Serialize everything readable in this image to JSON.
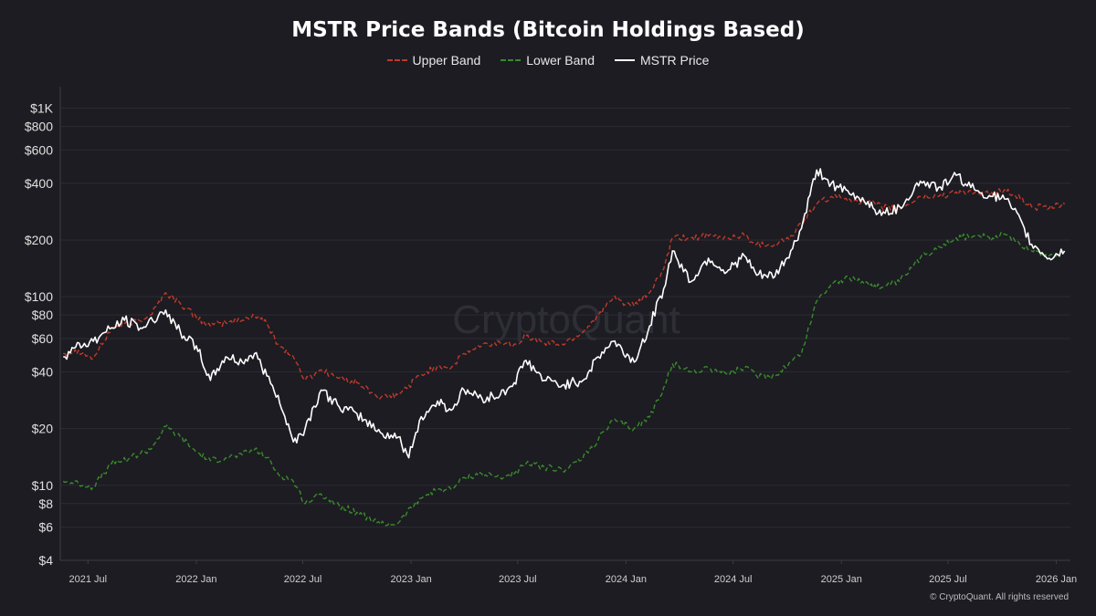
{
  "chart_data": {
    "type": "line",
    "title": "MSTR Price Bands (Bitcoin Holdings Based)",
    "xlabel": "",
    "ylabel": "",
    "y_scale": "log",
    "ylim": [
      4,
      1300
    ],
    "xlim": [
      "2021-05-15",
      "2026-01-25"
    ],
    "grid": true,
    "legend_position": "top-center",
    "x_tick_labels": [
      "2021 Jul",
      "2022 Jan",
      "2022 Jul",
      "2023 Jan",
      "2023 Jul",
      "2024 Jan",
      "2024 Jul",
      "2025 Jan",
      "2025 Jul",
      "2026 Jan"
    ],
    "x_tick_dates": [
      "2021-07-01",
      "2022-01-01",
      "2022-07-01",
      "2023-01-01",
      "2023-07-01",
      "2024-01-01",
      "2024-07-01",
      "2025-01-01",
      "2025-07-01",
      "2026-01-01"
    ],
    "y_tick_labels": [
      "$4",
      "$6",
      "$8",
      "$10",
      "$20",
      "$40",
      "$60",
      "$80",
      "$100",
      "$200",
      "$400",
      "$600",
      "$800",
      "$1K"
    ],
    "y_tick_values": [
      4,
      6,
      8,
      10,
      20,
      40,
      60,
      80,
      100,
      200,
      400,
      600,
      800,
      1000
    ],
    "series": [
      {
        "name": "Upper Band",
        "color": "#c0392b",
        "style": "dashed",
        "points": [
          [
            "2021-05-20",
            50
          ],
          [
            "2021-06-15",
            52
          ],
          [
            "2021-07-10",
            47
          ],
          [
            "2021-08-10",
            68
          ],
          [
            "2021-09-10",
            72
          ],
          [
            "2021-10-15",
            80
          ],
          [
            "2021-11-10",
            105
          ],
          [
            "2021-12-05",
            92
          ],
          [
            "2022-01-01",
            78
          ],
          [
            "2022-01-25",
            70
          ],
          [
            "2022-02-20",
            73
          ],
          [
            "2022-03-20",
            75
          ],
          [
            "2022-04-10",
            80
          ],
          [
            "2022-05-01",
            72
          ],
          [
            "2022-05-20",
            56
          ],
          [
            "2022-06-15",
            48
          ],
          [
            "2022-07-05",
            36
          ],
          [
            "2022-08-01",
            41
          ],
          [
            "2022-09-01",
            37
          ],
          [
            "2022-10-01",
            35
          ],
          [
            "2022-11-10",
            29
          ],
          [
            "2022-12-10",
            30
          ],
          [
            "2023-01-15",
            38
          ],
          [
            "2023-02-15",
            43
          ],
          [
            "2023-03-10",
            42
          ],
          [
            "2023-04-01",
            50
          ],
          [
            "2023-05-01",
            55
          ],
          [
            "2023-06-01",
            57
          ],
          [
            "2023-06-25",
            56
          ],
          [
            "2023-07-15",
            62
          ],
          [
            "2023-08-15",
            57
          ],
          [
            "2023-09-15",
            56
          ],
          [
            "2023-10-20",
            65
          ],
          [
            "2023-11-15",
            80
          ],
          [
            "2023-12-10",
            98
          ],
          [
            "2024-01-15",
            89
          ],
          [
            "2024-02-10",
            105
          ],
          [
            "2024-03-05",
            140
          ],
          [
            "2024-03-20",
            205
          ],
          [
            "2024-04-20",
            205
          ],
          [
            "2024-05-20",
            210
          ],
          [
            "2024-06-20",
            205
          ],
          [
            "2024-07-20",
            212
          ],
          [
            "2024-08-10",
            190
          ],
          [
            "2024-09-10",
            190
          ],
          [
            "2024-10-10",
            210
          ],
          [
            "2024-10-25",
            245
          ],
          [
            "2024-11-20",
            310
          ],
          [
            "2024-12-15",
            340
          ],
          [
            "2025-01-15",
            330
          ],
          [
            "2025-02-15",
            315
          ],
          [
            "2025-03-10",
            300
          ],
          [
            "2025-04-10",
            290
          ],
          [
            "2025-05-15",
            340
          ],
          [
            "2025-06-15",
            340
          ],
          [
            "2025-07-15",
            360
          ],
          [
            "2025-08-15",
            355
          ],
          [
            "2025-09-15",
            350
          ],
          [
            "2025-10-05",
            370
          ],
          [
            "2025-10-20",
            350
          ],
          [
            "2025-11-20",
            300
          ],
          [
            "2025-12-20",
            295
          ],
          [
            "2026-01-15",
            310
          ]
        ]
      },
      {
        "name": "Lower Band",
        "color": "#3a8a2c",
        "style": "dashed",
        "points": [
          [
            "2021-05-20",
            10.5
          ],
          [
            "2021-06-15",
            10.2
          ],
          [
            "2021-07-10",
            9.8
          ],
          [
            "2021-08-10",
            13
          ],
          [
            "2021-09-10",
            14
          ],
          [
            "2021-10-15",
            15.5
          ],
          [
            "2021-11-10",
            20.5
          ],
          [
            "2021-12-05",
            18
          ],
          [
            "2022-01-01",
            15
          ],
          [
            "2022-01-25",
            13.5
          ],
          [
            "2022-02-20",
            14
          ],
          [
            "2022-03-20",
            14.5
          ],
          [
            "2022-04-10",
            15.5
          ],
          [
            "2022-05-01",
            14
          ],
          [
            "2022-05-20",
            11.5
          ],
          [
            "2022-06-15",
            10.5
          ],
          [
            "2022-07-05",
            8
          ],
          [
            "2022-08-01",
            9
          ],
          [
            "2022-09-01",
            7.8
          ],
          [
            "2022-10-01",
            7.2
          ],
          [
            "2022-11-10",
            6.2
          ],
          [
            "2022-12-10",
            6.3
          ],
          [
            "2023-01-15",
            8.5
          ],
          [
            "2023-02-15",
            9.5
          ],
          [
            "2023-03-10",
            9.5
          ],
          [
            "2023-04-01",
            11
          ],
          [
            "2023-05-01",
            11.5
          ],
          [
            "2023-06-01",
            11
          ],
          [
            "2023-06-25",
            11.5
          ],
          [
            "2023-07-15",
            13
          ],
          [
            "2023-08-15",
            12.5
          ],
          [
            "2023-09-15",
            12
          ],
          [
            "2023-10-20",
            14
          ],
          [
            "2023-11-15",
            17.5
          ],
          [
            "2023-12-10",
            22
          ],
          [
            "2024-01-15",
            20
          ],
          [
            "2024-02-10",
            23
          ],
          [
            "2024-03-05",
            33
          ],
          [
            "2024-03-20",
            44
          ],
          [
            "2024-04-20",
            40
          ],
          [
            "2024-05-20",
            42
          ],
          [
            "2024-06-20",
            39
          ],
          [
            "2024-07-20",
            42
          ],
          [
            "2024-08-10",
            38
          ],
          [
            "2024-09-10",
            38
          ],
          [
            "2024-10-10",
            46
          ],
          [
            "2024-10-25",
            50
          ],
          [
            "2024-11-20",
            95
          ],
          [
            "2024-12-15",
            118
          ],
          [
            "2025-01-15",
            125
          ],
          [
            "2025-02-15",
            118
          ],
          [
            "2025-03-10",
            112
          ],
          [
            "2025-04-10",
            120
          ],
          [
            "2025-05-15",
            160
          ],
          [
            "2025-06-15",
            185
          ],
          [
            "2025-07-15",
            205
          ],
          [
            "2025-08-15",
            210
          ],
          [
            "2025-09-15",
            205
          ],
          [
            "2025-10-05",
            215
          ],
          [
            "2025-10-20",
            205
          ],
          [
            "2025-11-20",
            175
          ],
          [
            "2025-12-20",
            165
          ],
          [
            "2026-01-15",
            175
          ]
        ]
      },
      {
        "name": "MSTR Price",
        "color": "#ffffff",
        "style": "solid",
        "points": [
          [
            "2021-05-20",
            48
          ],
          [
            "2021-06-10",
            54
          ],
          [
            "2021-07-10",
            58
          ],
          [
            "2021-08-01",
            65
          ],
          [
            "2021-09-01",
            75
          ],
          [
            "2021-10-01",
            68
          ],
          [
            "2021-11-10",
            85
          ],
          [
            "2021-12-05",
            65
          ],
          [
            "2022-01-01",
            55
          ],
          [
            "2022-01-25",
            36
          ],
          [
            "2022-02-20",
            48
          ],
          [
            "2022-03-20",
            45
          ],
          [
            "2022-04-10",
            50
          ],
          [
            "2022-05-01",
            38
          ],
          [
            "2022-05-20",
            30
          ],
          [
            "2022-06-15",
            17
          ],
          [
            "2022-07-05",
            20
          ],
          [
            "2022-08-01",
            32
          ],
          [
            "2022-09-01",
            26
          ],
          [
            "2022-10-01",
            24
          ],
          [
            "2022-11-10",
            19
          ],
          [
            "2022-12-10",
            18
          ],
          [
            "2022-12-28",
            14
          ],
          [
            "2023-01-15",
            22
          ],
          [
            "2023-02-15",
            28
          ],
          [
            "2023-03-10",
            25
          ],
          [
            "2023-04-01",
            32
          ],
          [
            "2023-05-01",
            29
          ],
          [
            "2023-06-01",
            30
          ],
          [
            "2023-06-25",
            35
          ],
          [
            "2023-07-15",
            46
          ],
          [
            "2023-08-15",
            36
          ],
          [
            "2023-09-15",
            34
          ],
          [
            "2023-10-20",
            36
          ],
          [
            "2023-11-15",
            48
          ],
          [
            "2023-12-10",
            58
          ],
          [
            "2024-01-15",
            45
          ],
          [
            "2024-02-10",
            70
          ],
          [
            "2024-03-05",
            110
          ],
          [
            "2024-03-20",
            175
          ],
          [
            "2024-04-20",
            120
          ],
          [
            "2024-05-20",
            160
          ],
          [
            "2024-06-20",
            135
          ],
          [
            "2024-07-20",
            165
          ],
          [
            "2024-08-10",
            130
          ],
          [
            "2024-09-10",
            128
          ],
          [
            "2024-10-10",
            180
          ],
          [
            "2024-10-25",
            230
          ],
          [
            "2024-11-20",
            470
          ],
          [
            "2024-12-15",
            400
          ],
          [
            "2025-01-15",
            350
          ],
          [
            "2025-02-15",
            320
          ],
          [
            "2025-03-10",
            270
          ],
          [
            "2025-04-10",
            300
          ],
          [
            "2025-05-15",
            410
          ],
          [
            "2025-06-15",
            380
          ],
          [
            "2025-07-15",
            440
          ],
          [
            "2025-08-15",
            370
          ],
          [
            "2025-09-15",
            340
          ],
          [
            "2025-10-05",
            330
          ],
          [
            "2025-10-20",
            290
          ],
          [
            "2025-11-20",
            190
          ],
          [
            "2025-12-20",
            160
          ],
          [
            "2026-01-15",
            175
          ]
        ]
      }
    ]
  },
  "watermark": "CryptoQuant",
  "copyright": "© CryptoQuant. All rights reserved"
}
